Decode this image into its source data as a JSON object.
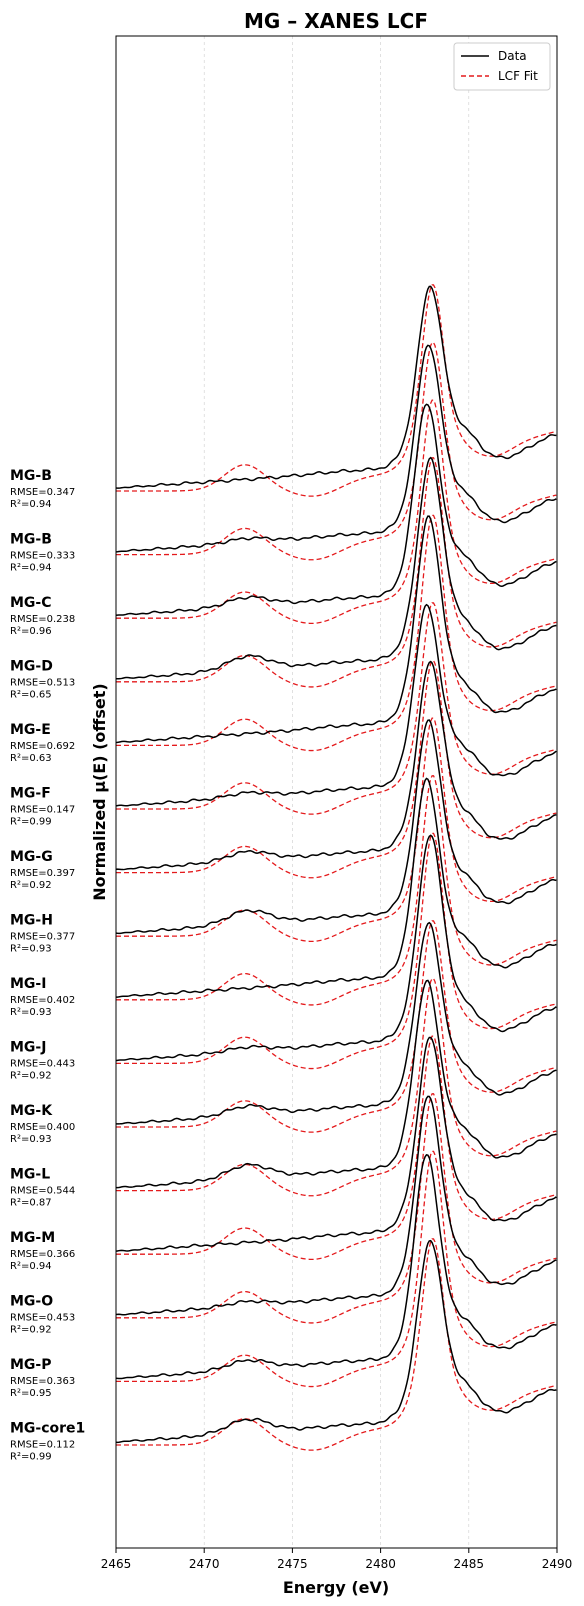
{
  "chart_data": {
    "type": "line",
    "title": "MG – XANES LCF",
    "xlabel": "Energy (eV)",
    "ylabel": "Normalized μ(E) (offset)",
    "xlim": [
      2465,
      2490
    ],
    "xticks": [
      2465,
      2470,
      2475,
      2480,
      2485,
      2490
    ],
    "grid": "vertical dotted",
    "legend": {
      "placement": "top-right",
      "entries": [
        {
          "label": "Data",
          "color": "#000000",
          "style": "solid"
        },
        {
          "label": "LCF Fit",
          "color": "#e41a1c",
          "style": "dashed"
        }
      ]
    },
    "peak_energy": 2482.8,
    "samples": [
      {
        "name": "MG-B",
        "rmse": "RMSE=0.347",
        "r2": "R²=0.94"
      },
      {
        "name": "MG-B",
        "rmse": "RMSE=0.333",
        "r2": "R²=0.94"
      },
      {
        "name": "MG-C",
        "rmse": "RMSE=0.238",
        "r2": "R²=0.96"
      },
      {
        "name": "MG-D",
        "rmse": "RMSE=0.513",
        "r2": "R²=0.65"
      },
      {
        "name": "MG-E",
        "rmse": "RMSE=0.692",
        "r2": "R²=0.63"
      },
      {
        "name": "MG-F",
        "rmse": "RMSE=0.147",
        "r2": "R²=0.99"
      },
      {
        "name": "MG-G",
        "rmse": "RMSE=0.397",
        "r2": "R²=0.92"
      },
      {
        "name": "MG-H",
        "rmse": "RMSE=0.377",
        "r2": "R²=0.93"
      },
      {
        "name": "MG-I",
        "rmse": "RMSE=0.402",
        "r2": "R²=0.93"
      },
      {
        "name": "MG-J",
        "rmse": "RMSE=0.443",
        "r2": "R²=0.92"
      },
      {
        "name": "MG-K",
        "rmse": "RMSE=0.400",
        "r2": "R²=0.93"
      },
      {
        "name": "MG-L",
        "rmse": "RMSE=0.544",
        "r2": "R²=0.87"
      },
      {
        "name": "MG-M",
        "rmse": "RMSE=0.366",
        "r2": "R²=0.94"
      },
      {
        "name": "MG-O",
        "rmse": "RMSE=0.453",
        "r2": "R²=0.92"
      },
      {
        "name": "MG-P",
        "rmse": "RMSE=0.363",
        "r2": "R²=0.95"
      },
      {
        "name": "MG-core1",
        "rmse": "RMSE=0.112",
        "r2": "R²=0.99"
      }
    ]
  }
}
